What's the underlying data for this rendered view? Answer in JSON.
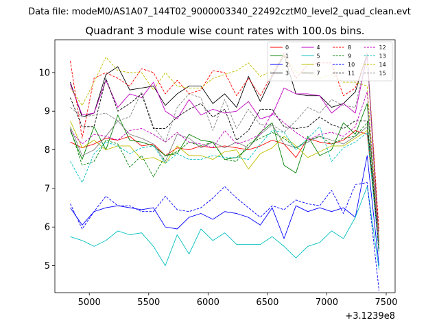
{
  "figure": {
    "suptitle": "Data file: modeM0/AS1A07_144T02_9000003340_22492cztM0_level2_quad_clean.evt"
  },
  "chart_data": {
    "type": "line",
    "title": "Quadrant 3 module wise count rates with 100.0s bins.",
    "xlabel": "",
    "ylabel": "",
    "x_offset_label": "+3.1239e8",
    "xlim": [
      4710,
      7575
    ],
    "ylim": [
      4.3,
      10.85
    ],
    "xticks": [
      5000,
      5500,
      6000,
      6500,
      7000,
      7500
    ],
    "yticks": [
      5,
      6,
      7,
      8,
      9,
      10
    ],
    "grid": false,
    "legend": {
      "placement": "top-right",
      "columns": 4
    },
    "x": [
      4840,
      4940,
      5040,
      5140,
      5240,
      5340,
      5440,
      5540,
      5640,
      5740,
      5840,
      5940,
      6040,
      6140,
      6240,
      6340,
      6440,
      6540,
      6640,
      6740,
      6840,
      6940,
      7040,
      7140,
      7240,
      7340,
      7440
    ],
    "series": [
      {
        "name": "0",
        "color": "#ff0000",
        "dash": "solid",
        "values": [
          8.2,
          8.05,
          8.15,
          8.3,
          8.25,
          8.35,
          8.1,
          8.15,
          7.85,
          8.05,
          8.0,
          8.1,
          8.05,
          8.1,
          8.05,
          8.0,
          8.1,
          8.25,
          8.15,
          7.8,
          8.3,
          8.2,
          8.15,
          8.25,
          8.5,
          8.4,
          5.5
        ]
      },
      {
        "name": "1",
        "color": "#008000",
        "dash": "solid",
        "values": [
          8.5,
          7.75,
          8.6,
          8.0,
          8.9,
          8.25,
          8.2,
          8.1,
          7.85,
          7.9,
          8.4,
          8.25,
          8.2,
          7.75,
          7.8,
          8.05,
          8.45,
          8.7,
          7.6,
          7.4,
          8.35,
          7.85,
          8.0,
          8.7,
          8.4,
          9.2,
          5.4
        ]
      },
      {
        "name": "2",
        "color": "#0000ff",
        "dash": "solid",
        "values": [
          6.5,
          6.05,
          6.4,
          6.5,
          6.55,
          6.5,
          6.45,
          6.5,
          6.0,
          5.95,
          6.25,
          6.35,
          6.2,
          6.4,
          6.35,
          6.25,
          6.05,
          6.5,
          5.7,
          6.55,
          6.4,
          6.5,
          6.4,
          6.5,
          6.25,
          7.85,
          5.0
        ]
      },
      {
        "name": "3",
        "color": "#000000",
        "dash": "solid",
        "values": [
          9.75,
          8.85,
          8.95,
          9.95,
          10.15,
          9.55,
          9.6,
          9.65,
          9.15,
          9.45,
          9.65,
          9.65,
          9.2,
          9.45,
          9.1,
          9.9,
          9.25,
          9.9,
          10.45,
          9.45,
          9.4,
          9.4,
          9.1,
          9.2,
          9.5,
          10.5,
          5.6
        ]
      },
      {
        "name": "4",
        "color": "#bf00bf",
        "dash": "solid",
        "values": [
          9.7,
          8.9,
          8.95,
          9.8,
          9.1,
          9.45,
          9.35,
          9.75,
          9.0,
          8.8,
          9.3,
          8.9,
          9.05,
          8.95,
          9.0,
          9.25,
          8.8,
          8.9,
          9.6,
          9.45,
          9.45,
          9.4,
          8.95,
          9.2,
          8.95,
          10.45,
          5.5
        ]
      },
      {
        "name": "5",
        "color": "#00bfbf",
        "dash": "solid",
        "values": [
          5.75,
          5.65,
          5.5,
          5.65,
          5.9,
          5.8,
          5.85,
          5.5,
          5.0,
          5.8,
          5.3,
          5.95,
          5.65,
          5.85,
          5.55,
          5.55,
          5.55,
          5.75,
          5.5,
          5.2,
          5.5,
          5.6,
          5.9,
          5.7,
          6.25,
          7.05,
          4.9
        ]
      },
      {
        "name": "6",
        "color": "#bfbf00",
        "dash": "solid",
        "values": [
          8.75,
          8.05,
          8.25,
          8.0,
          8.1,
          8.1,
          7.75,
          7.8,
          7.65,
          8.1,
          7.85,
          7.85,
          7.75,
          7.95,
          8.0,
          7.5,
          7.9,
          8.05,
          8.35,
          8.1,
          7.8,
          7.95,
          8.1,
          8.1,
          8.3,
          8.5,
          5.5
        ]
      },
      {
        "name": "7",
        "color": "#808080",
        "dash": "solid",
        "values": [
          8.6,
          7.85,
          8.0,
          8.35,
          8.75,
          8.4,
          8.3,
          8.15,
          7.7,
          8.4,
          8.3,
          8.05,
          8.2,
          8.05,
          8.2,
          8.05,
          8.4,
          8.65,
          8.15,
          8.05,
          8.2,
          8.35,
          8.25,
          8.15,
          8.35,
          8.6,
          5.4
        ]
      },
      {
        "name": "8",
        "color": "#ff0000",
        "dash": "dashed",
        "values": [
          10.3,
          8.3,
          9.85,
          10.0,
          9.85,
          9.65,
          10.1,
          10.0,
          9.45,
          9.8,
          9.45,
          9.55,
          10.05,
          10.0,
          9.4,
          9.85,
          9.4,
          9.95,
          10.5,
          9.85,
          10.2,
          10.25,
          10.25,
          9.4,
          9.6,
          10.45,
          5.9
        ]
      },
      {
        "name": "9",
        "color": "#008000",
        "dash": "dashed",
        "values": [
          8.55,
          7.6,
          7.7,
          8.25,
          8.15,
          7.55,
          7.85,
          7.3,
          7.85,
          7.95,
          8.2,
          8.1,
          8.2,
          7.75,
          7.7,
          8.15,
          8.3,
          8.45,
          8.3,
          8.05,
          8.25,
          8.35,
          8.15,
          8.3,
          8.35,
          8.7,
          5.3
        ]
      },
      {
        "name": "10",
        "color": "#0000ff",
        "dash": "dashed",
        "values": [
          6.6,
          5.95,
          6.4,
          6.8,
          6.55,
          6.55,
          6.4,
          6.4,
          6.8,
          6.45,
          6.4,
          6.5,
          6.75,
          7.05,
          6.75,
          6.5,
          6.25,
          6.55,
          6.45,
          6.7,
          6.6,
          6.55,
          6.95,
          6.35,
          7.1,
          7.15,
          4.35
        ]
      },
      {
        "name": "11",
        "color": "#000000",
        "dash": "dashed",
        "values": [
          9.35,
          8.6,
          8.6,
          9.85,
          9.0,
          9.2,
          9.45,
          8.55,
          8.55,
          8.85,
          9.05,
          9.2,
          8.85,
          9.05,
          8.25,
          8.5,
          9.05,
          9.05,
          8.6,
          8.55,
          8.6,
          8.85,
          8.65,
          8.55,
          8.75,
          8.75,
          5.4
        ]
      },
      {
        "name": "12",
        "color": "#bf00bf",
        "dash": "dashed",
        "values": [
          8.5,
          8.15,
          8.4,
          8.35,
          8.25,
          8.5,
          8.55,
          8.4,
          8.2,
          8.45,
          8.2,
          8.15,
          8.05,
          8.5,
          8.15,
          8.25,
          8.4,
          8.95,
          8.7,
          8.45,
          8.25,
          8.4,
          8.45,
          8.35,
          8.6,
          9.5,
          5.4
        ]
      },
      {
        "name": "13",
        "color": "#00bfbf",
        "dash": "dashed",
        "values": [
          7.7,
          7.15,
          7.9,
          8.2,
          8.1,
          7.9,
          8.05,
          8.1,
          7.65,
          7.9,
          7.75,
          7.75,
          7.85,
          7.8,
          7.8,
          7.75,
          8.15,
          8.5,
          8.45,
          8.0,
          8.3,
          8.6,
          7.7,
          8.05,
          8.2,
          8.45,
          5.35
        ]
      },
      {
        "name": "14",
        "color": "#bfbf00",
        "dash": "dashed",
        "values": [
          9.6,
          9.15,
          9.75,
          10.4,
          10.05,
          10.0,
          10.0,
          9.55,
          10.0,
          9.65,
          9.6,
          9.6,
          9.85,
          9.95,
          10.05,
          10.25,
          9.9,
          10.05,
          10.45,
          10.0,
          10.0,
          9.85,
          9.95,
          9.75,
          9.75,
          9.65,
          5.55
        ]
      },
      {
        "name": "15",
        "color": "#808080",
        "dash": "dashed",
        "values": [
          9.1,
          8.85,
          8.9,
          8.95,
          8.75,
          8.85,
          9.5,
          8.6,
          8.2,
          9.1,
          9.45,
          9.35,
          8.5,
          9.3,
          8.55,
          9.05,
          8.65,
          8.65,
          8.45,
          8.75,
          9.1,
          8.95,
          9.3,
          9.15,
          9.1,
          10.5,
          5.45
        ]
      }
    ]
  }
}
